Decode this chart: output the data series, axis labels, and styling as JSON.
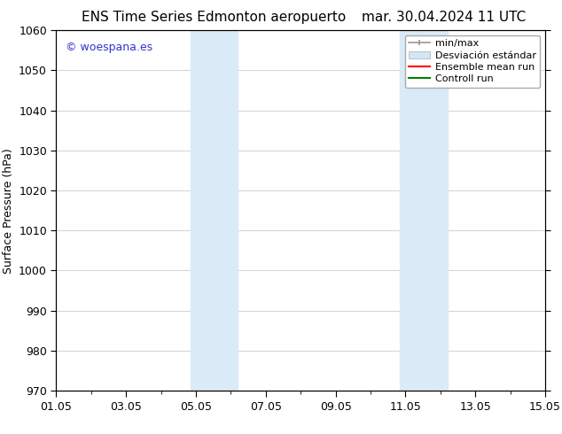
{
  "title_left": "ENS Time Series Edmonton aeropuerto",
  "title_right": "mar. 30.04.2024 11 UTC",
  "ylabel": "Surface Pressure (hPa)",
  "ylim": [
    970,
    1060
  ],
  "yticks": [
    970,
    980,
    990,
    1000,
    1010,
    1020,
    1030,
    1040,
    1050,
    1060
  ],
  "xtick_labels": [
    "01.05",
    "03.05",
    "05.05",
    "07.05",
    "09.05",
    "11.05",
    "13.05",
    "15.05"
  ],
  "xtick_positions": [
    0,
    2,
    4,
    6,
    8,
    10,
    12,
    14
  ],
  "xlim": [
    0,
    14
  ],
  "shaded_regions": [
    {
      "x_start": 3.85,
      "x_end": 5.2,
      "color": "#daeaf7"
    },
    {
      "x_start": 9.85,
      "x_end": 11.2,
      "color": "#daeaf7"
    }
  ],
  "watermark_text": "© woespana.es",
  "watermark_color": "#3333cc",
  "legend_label_minmax": "min/max",
  "legend_label_desv": "Desviación estándar",
  "legend_label_ens": "Ensemble mean run",
  "legend_label_ctrl": "Controll run",
  "bg_color": "#ffffff",
  "grid_color": "#cccccc",
  "title_fontsize": 11,
  "tick_fontsize": 9,
  "ylabel_fontsize": 9,
  "watermark_fontsize": 9,
  "legend_fontsize": 8
}
